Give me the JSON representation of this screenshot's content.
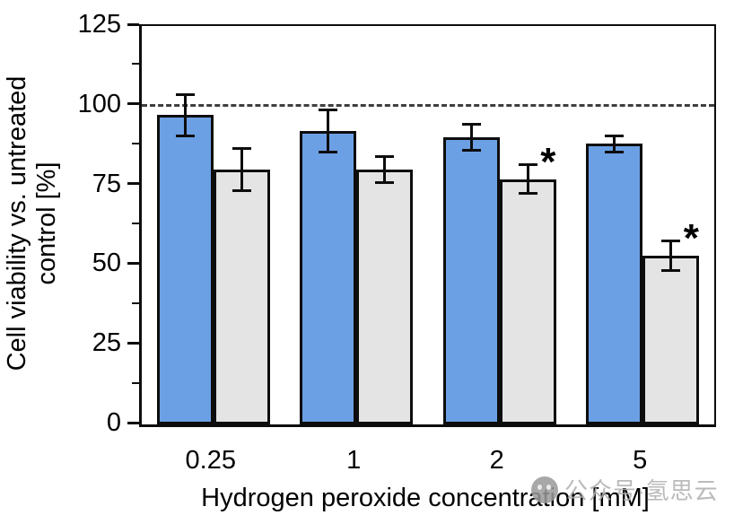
{
  "chart_data": {
    "type": "bar",
    "title": "",
    "xlabel": "Hydrogen peroxide concentration [mM]",
    "ylabel": "Cell viability vs. untreated control [%]",
    "ylabel_lines": [
      "Cell viability vs. untreated",
      "control [%]"
    ],
    "categories": [
      "0.25",
      "1",
      "2",
      "5"
    ],
    "series": [
      {
        "name": "blue-series",
        "color": "#6CA0E4",
        "values": [
          97,
          92,
          90,
          88
        ],
        "errors": [
          7,
          7,
          4.5,
          3
        ],
        "significant": [
          false,
          false,
          false,
          false
        ]
      },
      {
        "name": "gray-series",
        "color": "#E4E4E4",
        "values": [
          80,
          80,
          77,
          53
        ],
        "errors": [
          7,
          4.5,
          5,
          5
        ],
        "significant": [
          false,
          false,
          true,
          true
        ]
      }
    ],
    "ylim": [
      0,
      125
    ],
    "yticks": [
      0,
      25,
      50,
      75,
      100,
      125
    ],
    "minor_tick_step": 12.5,
    "reference_line": {
      "value": 100,
      "style": "dashed",
      "color": "#3f3f3f"
    },
    "significance_marker": "*",
    "legend": "none",
    "grid": "off"
  },
  "watermark": {
    "icon": "wechat-account-icon",
    "text": "公众号·氢思云"
  }
}
